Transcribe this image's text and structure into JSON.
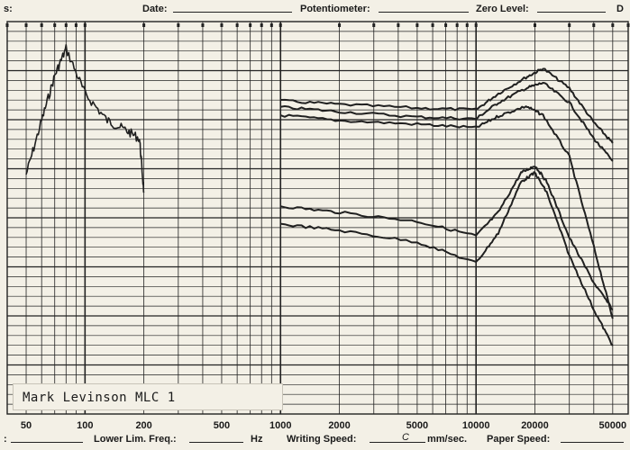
{
  "header": {
    "left_label": "s:",
    "date_label": "Date:",
    "potentiometer_label": "Potentiometer:",
    "zero_level_label": "Zero Level:",
    "right_label": "D"
  },
  "footer": {
    "left_label": ":",
    "lower_lim_label": "Lower Lim. Freq.:",
    "hz_label": "Hz",
    "writing_speed_label": "Writing Speed:",
    "writing_speed_value": "C",
    "mm_sec_label": "mm/sec.",
    "paper_speed_label": "Paper Speed:"
  },
  "caption": "Mark Levinson MLC 1",
  "chart_data": {
    "type": "line",
    "title": "Mark Levinson MLC 1",
    "x_scale": "log",
    "x_tick_labels": [
      "50",
      "100",
      "200",
      "500",
      "1000",
      "2000",
      "5000",
      "10000",
      "20000",
      "50000"
    ],
    "xlim": [
      40,
      60000
    ],
    "grid": true,
    "series": [
      {
        "x": [
          50,
          60,
          70,
          80,
          100,
          130,
          160,
          190,
          200
        ],
        "y": [
          170,
          110,
          60,
          30,
          80,
          110,
          120,
          130,
          190
        ]
      },
      {
        "x": [
          1000,
          2000,
          5000,
          10000,
          13000,
          18000,
          22000,
          30000,
          40000,
          50000
        ],
        "y": [
          88,
          92,
          96,
          98,
          80,
          62,
          52,
          74,
          112,
          135
        ]
      },
      {
        "x": [
          1000,
          2000,
          5000,
          10000,
          13000,
          18000,
          22000,
          30000,
          40000,
          50000
        ],
        "y": [
          95,
          100,
          106,
          108,
          90,
          74,
          68,
          90,
          130,
          155
        ]
      },
      {
        "x": [
          1000,
          2000,
          5000,
          10000,
          13000,
          18000,
          22000,
          30000,
          40000,
          50000
        ],
        "y": [
          104,
          110,
          114,
          118,
          105,
          94,
          104,
          150,
          250,
          330
        ]
      },
      {
        "x": [
          1000,
          2000,
          5000,
          10000,
          13000,
          17000,
          20000,
          23000,
          30000,
          40000,
          50000
        ],
        "y": [
          205,
          212,
          222,
          238,
          212,
          168,
          160,
          178,
          240,
          290,
          320
        ]
      },
      {
        "x": [
          1000,
          2000,
          5000,
          10000,
          13000,
          17000,
          20000,
          23000,
          30000,
          40000,
          50000
        ],
        "y": [
          225,
          232,
          245,
          268,
          235,
          178,
          168,
          190,
          260,
          320,
          360
        ]
      }
    ]
  },
  "colors": {
    "paper": "#f3f0e6",
    "grid": "#222222",
    "trace": "#202020"
  }
}
